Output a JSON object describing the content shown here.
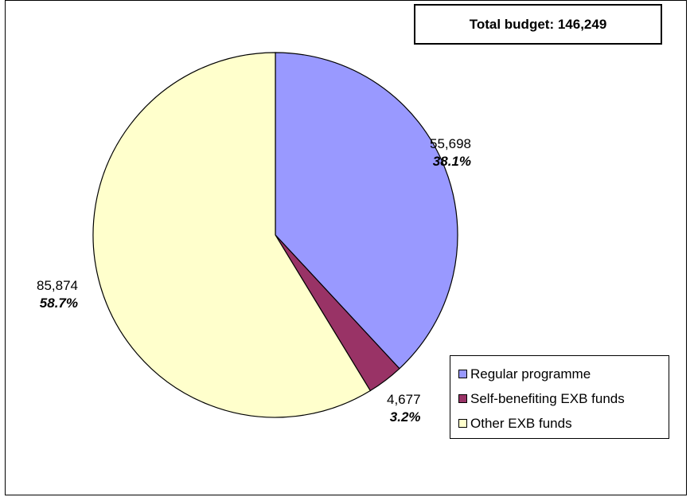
{
  "chart_data": {
    "type": "pie",
    "title": "Total budget: 146,249",
    "total": 146249,
    "slices": [
      {
        "name": "Regular programme",
        "value": 55698,
        "value_label": "55,698",
        "percent_label": "38.1%",
        "color": "#9999ff"
      },
      {
        "name": "Self-benefiting EXB funds",
        "value": 4677,
        "value_label": "4,677",
        "percent_label": "3.2%",
        "color": "#993366"
      },
      {
        "name": "Other EXB funds",
        "value": 85874,
        "value_label": "85,874",
        "percent_label": "58.7%",
        "color": "#ffffcc"
      }
    ],
    "start_angle": "top",
    "direction": "clockwise",
    "legend_position": "bottom-right"
  }
}
